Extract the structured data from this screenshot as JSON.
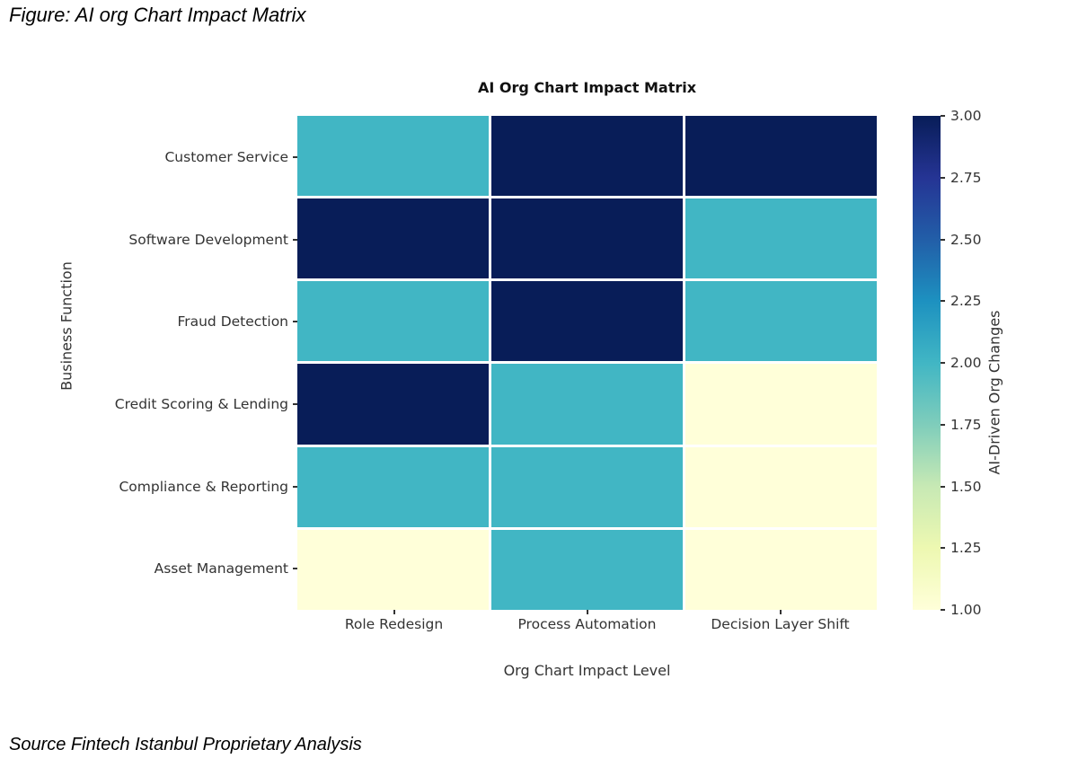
{
  "figure": {
    "caption": "Figure: AI org Chart Impact Matrix",
    "source": "Source Fintech Istanbul Proprietary Analysis"
  },
  "chart_data": {
    "type": "heatmap",
    "title": "AI Org Chart Impact Matrix",
    "xlabel": "Org Chart Impact Level",
    "ylabel": "Business Function",
    "x_categories": [
      "Role Redesign",
      "Process Automation",
      "Decision Layer Shift"
    ],
    "y_categories": [
      "Customer Service",
      "Software Development",
      "Fraud Detection",
      "Credit Scoring & Lending",
      "Compliance & Reporting",
      "Asset Management"
    ],
    "values": [
      [
        2,
        3,
        3
      ],
      [
        3,
        3,
        2
      ],
      [
        2,
        3,
        2
      ],
      [
        3,
        2,
        1
      ],
      [
        2,
        2,
        1
      ],
      [
        1,
        2,
        1
      ]
    ],
    "value_colors": {
      "1": "#ffffd9",
      "2": "#41b6c4",
      "3": "#081d58"
    },
    "grid_line_color": "#ffffff",
    "colorbar": {
      "label": "AI-Driven Org Changes",
      "min": 1.0,
      "max": 3.0,
      "ticks": [
        "3.00",
        "2.75",
        "2.50",
        "2.25",
        "2.00",
        "1.75",
        "1.50",
        "1.25",
        "1.00"
      ],
      "colormap": "YlGnBu",
      "gradient_stops_bottom_to_top": [
        "#ffffd9",
        "#edf8b1",
        "#c7e9b4",
        "#7fcdbb",
        "#41b6c4",
        "#1d91c0",
        "#225ea8",
        "#253494",
        "#081d58"
      ],
      "position": "right"
    }
  }
}
